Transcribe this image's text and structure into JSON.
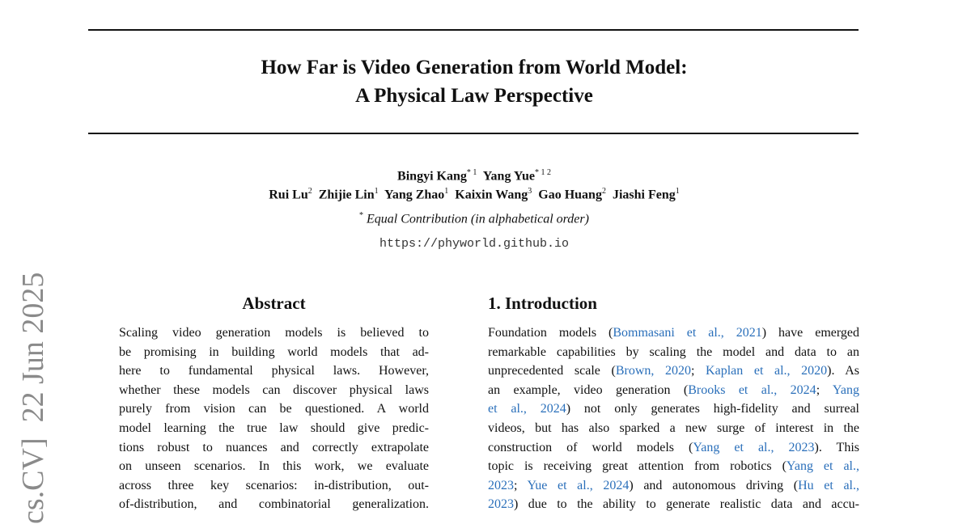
{
  "side_stamp": "cs.CV]  22 Jun 2025",
  "header": {
    "title_lines": [
      "How Far is Video Generation from World Model:",
      "A Physical Law Perspective"
    ]
  },
  "authors": [
    [
      {
        "name": "Bingyi Kang",
        "sup": "* 1"
      },
      {
        "name": "Yang Yue",
        "sup": "* 1 2"
      }
    ],
    [
      {
        "name": "Rui Lu",
        "sup": "2"
      },
      {
        "name": "Zhijie Lin",
        "sup": "1"
      },
      {
        "name": "Yang Zhao",
        "sup": "1"
      },
      {
        "name": "Kaixin Wang",
        "sup": "3"
      },
      {
        "name": "Gao Huang",
        "sup": "2"
      },
      {
        "name": "Jiashi Feng",
        "sup": "1"
      }
    ]
  ],
  "note": {
    "mark": "*",
    "text": "Equal Contribution (in alphabetical order)"
  },
  "url": "https://phyworld.github.io",
  "abstract": {
    "heading": "Abstract",
    "lines": [
      "Scaling video generation models is believed to",
      "be promising in building world models that ad-",
      "here to fundamental physical laws.  However,",
      "whether these models can discover physical laws",
      "purely from vision can be questioned.  A world",
      "model learning the true law should give predic-",
      "tions robust to nuances and correctly extrapolate",
      "on unseen scenarios.  In this work, we evaluate",
      "across three key scenarios: in-distribution, out-",
      "of-distribution, and combinatorial generalization."
    ]
  },
  "intro": {
    "heading": "1. Introduction",
    "lines": [
      [
        {
          "text": "Foundation models ("
        },
        {
          "text": "Bommasani et al., 2021",
          "cite": true
        },
        {
          "text": ") have emerged"
        }
      ],
      [
        {
          "text": "remarkable capabilities by scaling the model and data to an"
        }
      ],
      [
        {
          "text": "unprecedented scale ("
        },
        {
          "text": "Brown, 2020",
          "cite": true
        },
        {
          "text": "; "
        },
        {
          "text": "Kaplan et al., 2020",
          "cite": true
        },
        {
          "text": ").  As"
        }
      ],
      [
        {
          "text": "an example, video generation ("
        },
        {
          "text": "Brooks et al., 2024",
          "cite": true
        },
        {
          "text": "; "
        },
        {
          "text": "Yang",
          "cite": true
        }
      ],
      [
        {
          "text": "et al., 2024",
          "cite": true
        },
        {
          "text": ") not only generates high-fidelity and surreal"
        }
      ],
      [
        {
          "text": "videos, but has also sparked a new surge of interest in the"
        }
      ],
      [
        {
          "text": "construction of world models ("
        },
        {
          "text": "Yang et al., 2023",
          "cite": true
        },
        {
          "text": ").  This"
        }
      ],
      [
        {
          "text": "topic is receiving great attention from robotics ("
        },
        {
          "text": "Yang et al.,",
          "cite": true
        }
      ],
      [
        {
          "text": "2023",
          "cite": true
        },
        {
          "text": "; "
        },
        {
          "text": "Yue et al., 2024",
          "cite": true
        },
        {
          "text": ") and autonomous driving ("
        },
        {
          "text": "Hu et al.,",
          "cite": true
        }
      ],
      [
        {
          "text": "2023",
          "cite": true
        },
        {
          "text": ") due to the ability to generate realistic data and accu-"
        }
      ]
    ]
  }
}
